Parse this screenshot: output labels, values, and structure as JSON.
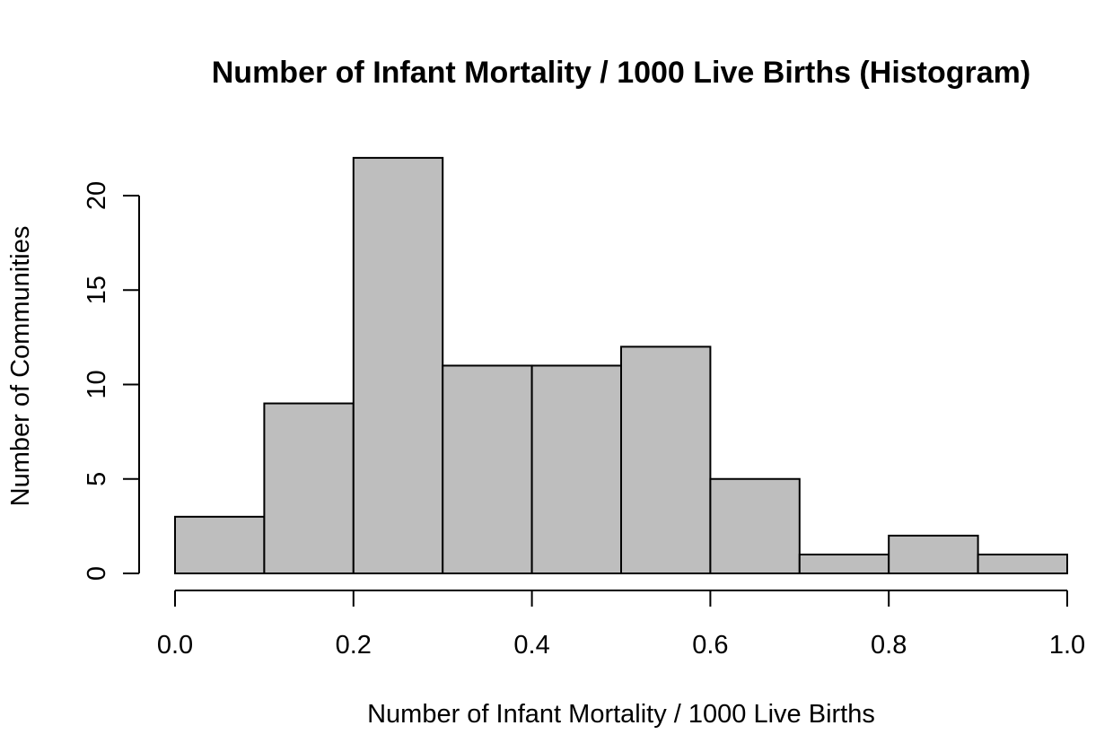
{
  "chart_data": {
    "type": "bar",
    "subtype": "histogram",
    "title": "Number of Infant Mortality / 1000 Live Births (Histogram)",
    "xlabel": "Number of Infant Mortality / 1000 Live Births",
    "ylabel": "Number of Communities",
    "bins": [
      {
        "start": 0.0,
        "end": 0.1,
        "count": 3
      },
      {
        "start": 0.1,
        "end": 0.2,
        "count": 9
      },
      {
        "start": 0.2,
        "end": 0.3,
        "count": 22
      },
      {
        "start": 0.3,
        "end": 0.4,
        "count": 11
      },
      {
        "start": 0.4,
        "end": 0.5,
        "count": 11
      },
      {
        "start": 0.5,
        "end": 0.6,
        "count": 12
      },
      {
        "start": 0.6,
        "end": 0.7,
        "count": 5
      },
      {
        "start": 0.7,
        "end": 0.8,
        "count": 1
      },
      {
        "start": 0.8,
        "end": 0.9,
        "count": 2
      },
      {
        "start": 0.9,
        "end": 1.0,
        "count": 1
      }
    ],
    "xlim": [
      0.0,
      1.0
    ],
    "ylim": [
      0,
      22
    ],
    "x_ticks": [
      0.0,
      0.2,
      0.4,
      0.6,
      0.8,
      1.0
    ],
    "x_tick_labels": [
      "0.0",
      "0.2",
      "0.4",
      "0.6",
      "0.8",
      "1.0"
    ],
    "y_ticks": [
      0,
      5,
      10,
      15,
      20
    ],
    "y_tick_labels": [
      "0",
      "5",
      "10",
      "15",
      "20"
    ],
    "bar_color": "#bebebe",
    "edge_color": "#000000",
    "grid": false,
    "legend": "none"
  }
}
